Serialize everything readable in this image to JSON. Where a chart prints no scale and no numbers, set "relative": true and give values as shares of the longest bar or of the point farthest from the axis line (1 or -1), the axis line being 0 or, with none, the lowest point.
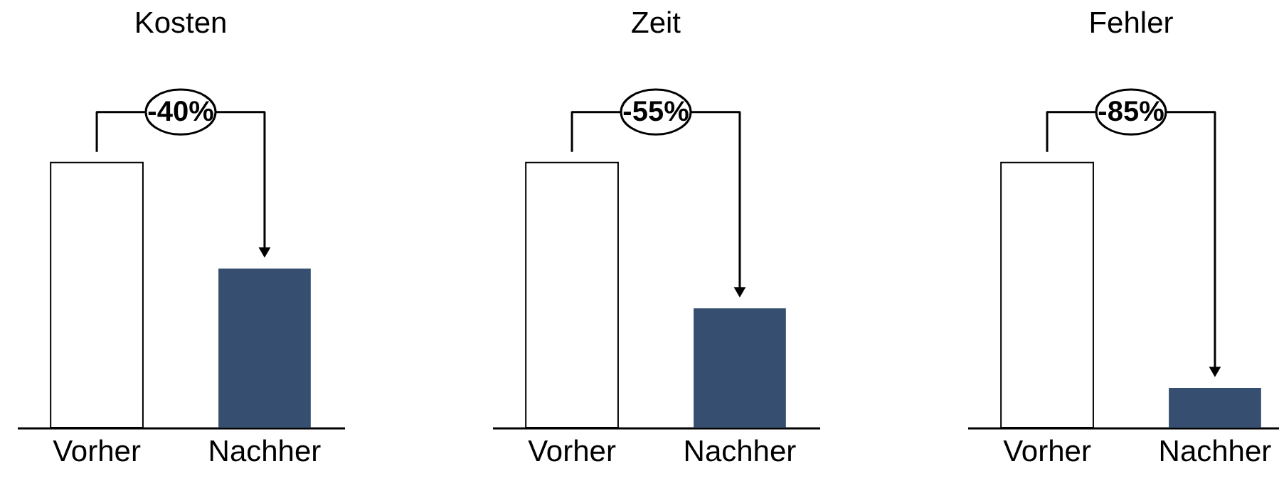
{
  "chart_data": [
    {
      "type": "bar",
      "title": "Kosten",
      "categories": [
        "Vorher",
        "Nachher"
      ],
      "values": [
        1,
        0.6
      ],
      "colors": [
        "#ffffff",
        "#364e6f"
      ],
      "relative": true,
      "annotations": [
        "-40%"
      ]
    },
    {
      "type": "bar",
      "title": "Zeit",
      "categories": [
        "Vorher",
        "Nachher"
      ],
      "values": [
        1,
        0.45
      ],
      "colors": [
        "#ffffff",
        "#364e6f"
      ],
      "relative": true,
      "annotations": [
        "-55%"
      ]
    },
    {
      "type": "bar",
      "title": "Fehler",
      "categories": [
        "Vorher",
        "Nachher"
      ],
      "values": [
        1,
        0.15
      ],
      "colors": [
        "#ffffff",
        "#364e6f"
      ],
      "relative": true,
      "annotations": [
        "-85%"
      ]
    }
  ]
}
